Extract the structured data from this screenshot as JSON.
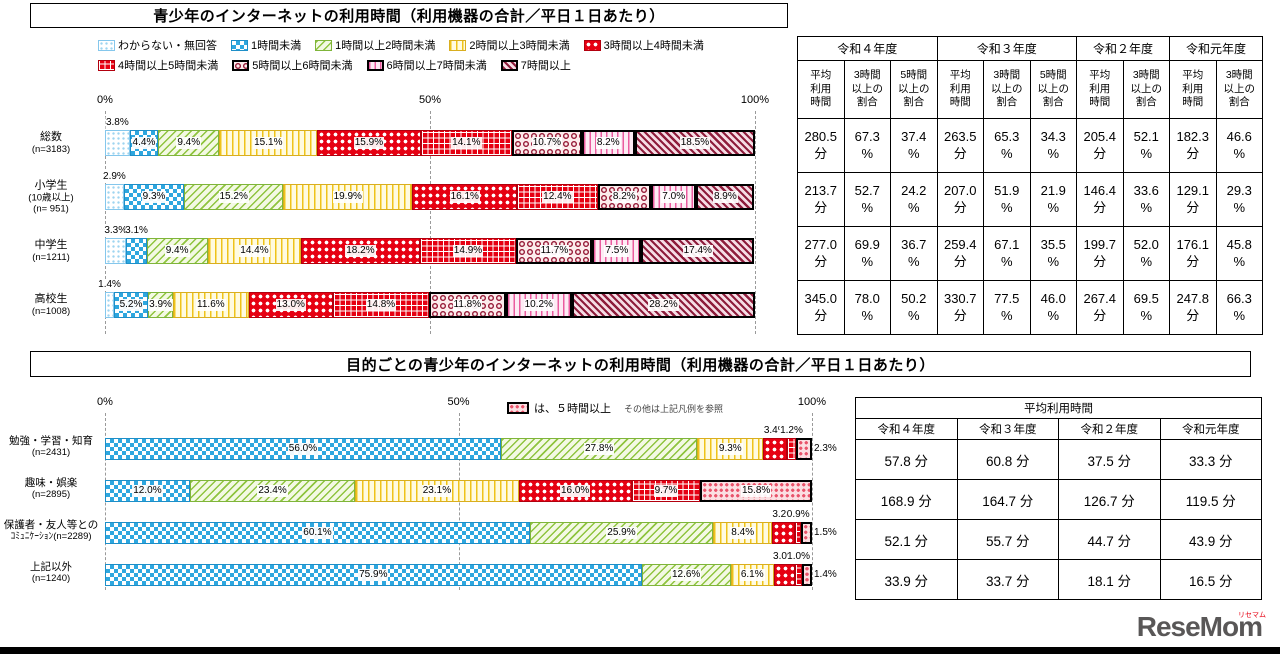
{
  "colors": {
    "red": "#E60012",
    "blue": "#2EA7DF",
    "green": "#8FC43F",
    "yellow": "#EFC319",
    "magenta": "#EA5C9F",
    "maroon": "#8E1D3C",
    "pink_red": "#E9546B",
    "footer_bar": "#000000",
    "logo_gray": "#595757"
  },
  "chart_data": [
    {
      "id": "usage_by_age",
      "type": "bar",
      "variant": "stacked-horizontal",
      "title": "青少年のインターネットの利用時間（利用機器の合計／平日１日あたり）",
      "unit": "%",
      "xlim": [
        0,
        100
      ],
      "ticks": [
        "0%",
        "50%",
        "100%"
      ],
      "grid": "dashed-vertical",
      "legend_position": "top",
      "categories": [
        [
          "総数",
          "(n=3183)"
        ],
        [
          "小学生",
          "(10歳以上)",
          "(n= 951)"
        ],
        [
          "中学生",
          "(n=1211)"
        ],
        [
          "高校生",
          "(n=1008)"
        ]
      ],
      "series": [
        {
          "name": "わからない・無回答",
          "pattern": "light-blue-dots",
          "values": [
            3.8,
            2.9,
            3.3,
            1.4
          ]
        },
        {
          "name": "1時間未満",
          "pattern": "blue-checker",
          "values": [
            4.4,
            9.3,
            3.1,
            5.2
          ]
        },
        {
          "name": "1時間以上2時間未満",
          "pattern": "green-diagonal",
          "values": [
            9.4,
            15.2,
            9.4,
            3.9
          ]
        },
        {
          "name": "2時間以上3時間未満",
          "pattern": "yellow-vertical",
          "values": [
            15.1,
            19.9,
            14.4,
            11.6
          ]
        },
        {
          "name": "3時間以上4時間未満",
          "pattern": "red-white-dots",
          "values": [
            15.9,
            16.1,
            18.2,
            13.0
          ]
        },
        {
          "name": "4時間以上5時間未満",
          "pattern": "red-grid",
          "values": [
            14.1,
            12.4,
            14.9,
            14.8
          ]
        },
        {
          "name": "5時間以上6時間未満",
          "pattern": "maroon-rings",
          "values": [
            10.7,
            8.2,
            11.7,
            11.8
          ]
        },
        {
          "name": "6時間以上7時間未満",
          "pattern": "pink-vertical",
          "values": [
            8.2,
            7.0,
            7.5,
            10.2
          ]
        },
        {
          "name": "7時間以上",
          "pattern": "maroon-diagonal",
          "values": [
            18.5,
            8.9,
            17.4,
            28.2
          ]
        }
      ]
    },
    {
      "id": "usage_by_purpose",
      "type": "bar",
      "variant": "stacked-horizontal",
      "title": "目的ごとの青少年のインターネットの利用時間（利用機器の合計／平日１日あたり）",
      "unit": "%",
      "xlim": [
        0,
        100
      ],
      "ticks": [
        "0%",
        "50%",
        "100%"
      ],
      "grid": "dashed-vertical",
      "note": {
        "swatch": "pink-red-dots",
        "text": "は、５時間以上",
        "sub": "その他は上記凡例を参照"
      },
      "categories": [
        [
          "勉強・学習・知育",
          "(n=2431)"
        ],
        [
          "趣味・娯楽",
          "(n=2895)"
        ],
        [
          "保護者・友人等との",
          "ｺﾐｭﾆｹｰｼｮﾝ(n=2289)"
        ],
        [
          "上記以外",
          "(n=1240)"
        ]
      ],
      "series": [
        {
          "name": "1時間未満",
          "pattern": "blue-checker",
          "values": [
            56.0,
            12.0,
            60.1,
            75.9
          ]
        },
        {
          "name": "1時間以上2時間未満",
          "pattern": "green-diagonal",
          "values": [
            27.8,
            23.4,
            25.9,
            12.6
          ]
        },
        {
          "name": "2時間以上3時間未満",
          "pattern": "yellow-vertical",
          "values": [
            9.3,
            23.1,
            8.4,
            6.1
          ]
        },
        {
          "name": "3時間以上4時間未満",
          "pattern": "red-white-dots",
          "values": [
            3.4,
            16.0,
            3.2,
            3.0
          ]
        },
        {
          "name": "4時間以上5時間未満",
          "pattern": "red-grid",
          "values": [
            1.2,
            9.7,
            0.9,
            1.0
          ]
        },
        {
          "name": "５時間以上",
          "pattern": "pink-red-dots",
          "values": [
            2.3,
            15.8,
            1.5,
            1.4
          ]
        }
      ]
    },
    {
      "id": "summary_by_age",
      "type": "table",
      "groups": [
        {
          "year": "令和４年度",
          "metrics": [
            "平均\n利用\n時間",
            "3時間\n以上の\n割合",
            "5時間\n以上の\n割合"
          ]
        },
        {
          "year": "令和３年度",
          "metrics": [
            "平均\n利用\n時間",
            "3時間\n以上の\n割合",
            "5時間\n以上の\n割合"
          ]
        },
        {
          "year": "令和２年度",
          "metrics": [
            "平均\n利用\n時間",
            "3時間\n以上の\n割合"
          ]
        },
        {
          "year": "令和元年度",
          "metrics": [
            "平均\n利用\n時間",
            "3時間\n以上の\n割合"
          ]
        }
      ],
      "rows": [
        [
          "280.5\n分",
          "67.3\n%",
          "37.4\n%",
          "263.5\n分",
          "65.3\n%",
          "34.3\n%",
          "205.4\n分",
          "52.1\n%",
          "182.3\n分",
          "46.6\n%"
        ],
        [
          "213.7\n分",
          "52.7\n%",
          "24.2\n%",
          "207.0\n分",
          "51.9\n%",
          "21.9\n%",
          "146.4\n分",
          "33.6\n%",
          "129.1\n分",
          "29.3\n%"
        ],
        [
          "277.0\n分",
          "69.9\n%",
          "36.7\n%",
          "259.4\n分",
          "67.1\n%",
          "35.5\n%",
          "199.7\n分",
          "52.0\n%",
          "176.1\n分",
          "45.8\n%"
        ],
        [
          "345.0\n分",
          "78.0\n%",
          "50.2\n%",
          "330.7\n分",
          "77.5\n%",
          "46.0\n%",
          "267.4\n分",
          "69.5\n%",
          "247.8\n分",
          "66.3\n%"
        ]
      ]
    },
    {
      "id": "avg_time_by_purpose",
      "type": "table",
      "title": "平均利用時間",
      "years": [
        "令和４年度",
        "令和３年度",
        "令和２年度",
        "令和元年度"
      ],
      "rows": [
        [
          "57.8 分",
          "60.8 分",
          "37.5 分",
          "33.3 分"
        ],
        [
          "168.9 分",
          "164.7 分",
          "126.7 分",
          "119.5 分"
        ],
        [
          "52.1 分",
          "55.7 分",
          "44.7 分",
          "43.9 分"
        ],
        [
          "33.9 分",
          "33.7 分",
          "18.1 分",
          "16.5 分"
        ]
      ]
    }
  ],
  "logo": {
    "text": "ReseMom",
    "ruby": "リセマム"
  }
}
